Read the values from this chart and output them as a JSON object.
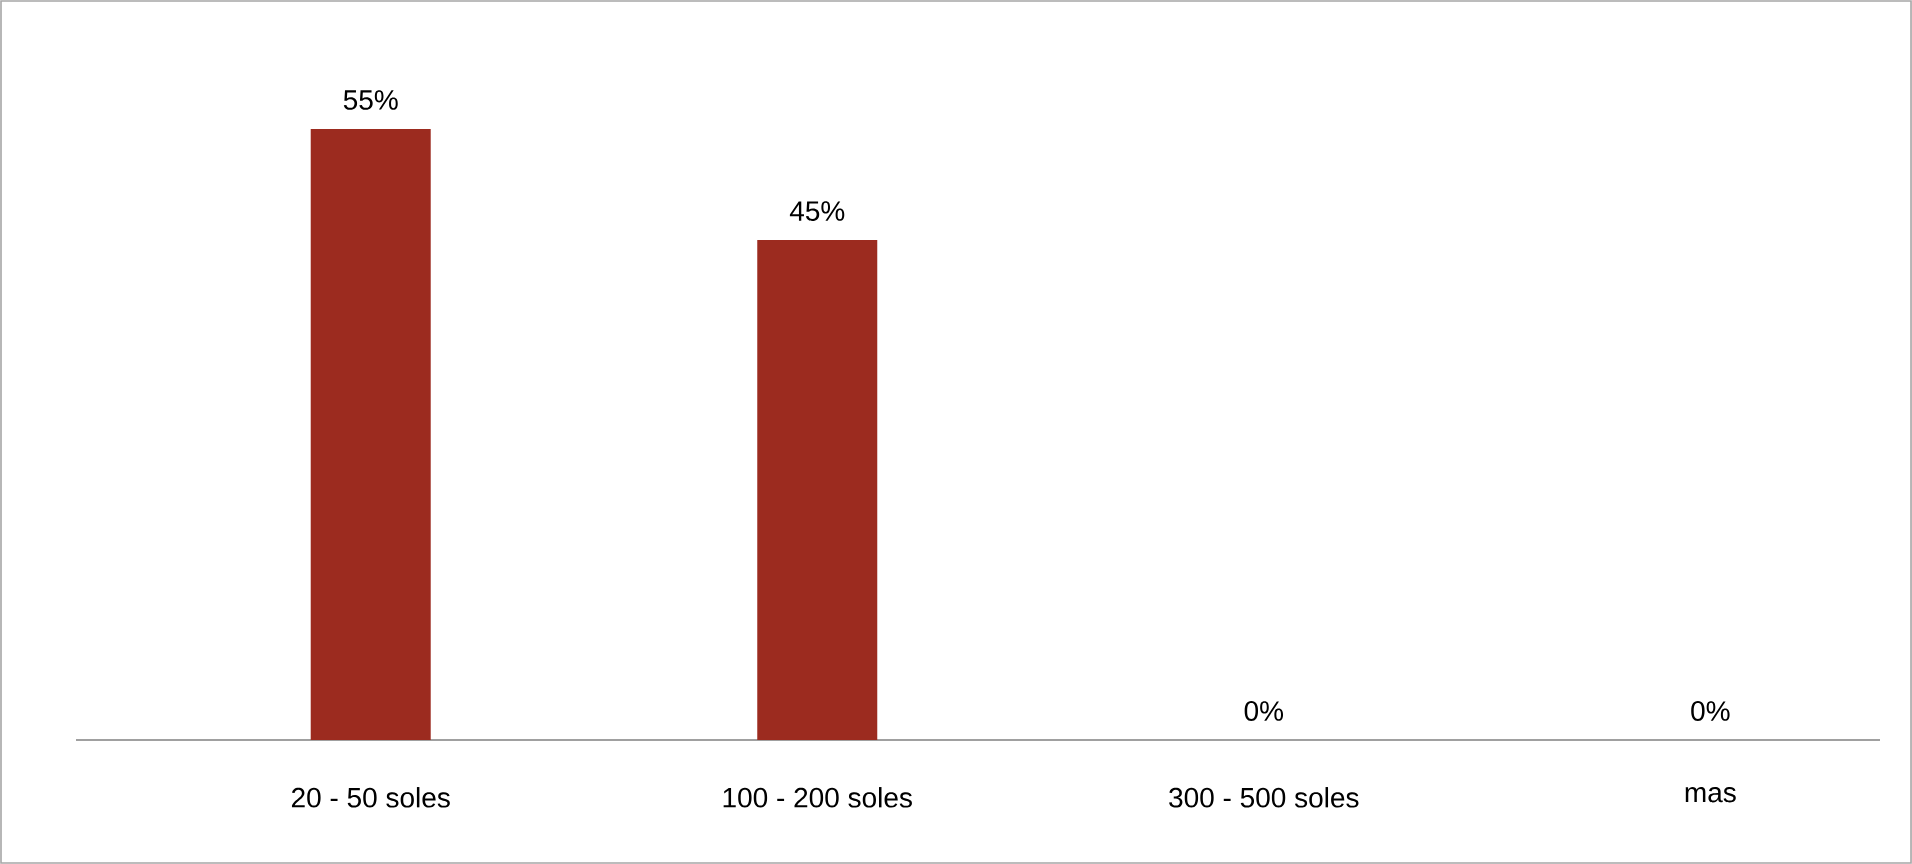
{
  "chart_data": {
    "type": "bar",
    "categories": [
      "20 - 50 soles",
      "100 - 200 soles",
      "300 - 500 soles",
      "mas"
    ],
    "values": [
      55,
      45,
      0,
      0
    ],
    "value_labels": [
      "55%",
      "45%",
      "0%",
      "0%"
    ],
    "color": "#9c2b1f"
  }
}
